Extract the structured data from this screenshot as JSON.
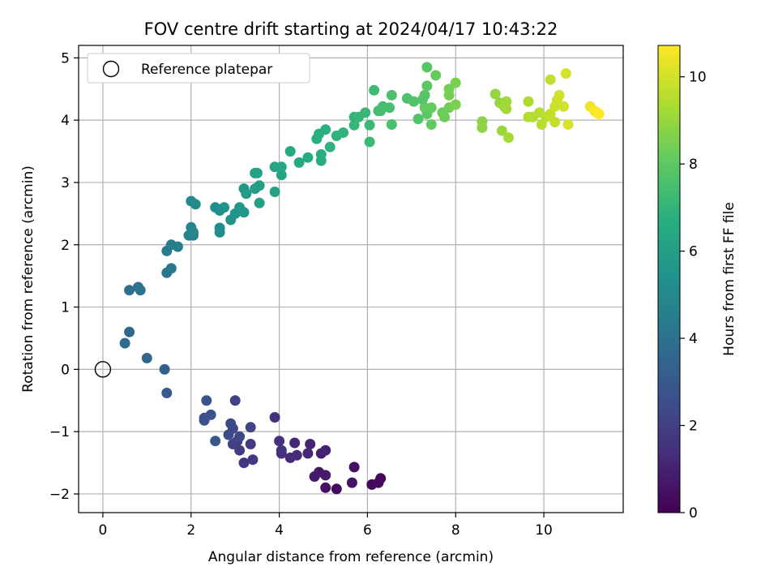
{
  "chart_data": {
    "type": "scatter",
    "title": "FOV centre drift starting at 2024/04/17 10:43:22",
    "xlabel": "Angular distance from reference (arcmin)",
    "ylabel": "Rotation from reference (arcmin)",
    "xlim": [
      -0.55,
      11.8
    ],
    "ylim": [
      -2.3,
      5.2
    ],
    "xticks": [
      0,
      2,
      4,
      6,
      8,
      10
    ],
    "yticks": [
      -2,
      -1,
      0,
      1,
      2,
      3,
      4,
      5
    ],
    "grid": true,
    "legend": {
      "placement": "top-left",
      "entries": [
        "Reference platepar"
      ]
    },
    "reference_point": {
      "x": 0,
      "y": 0
    },
    "colorbar": {
      "label": "Hours from first FF file",
      "colormap": "viridis",
      "min": 0,
      "max": 10.72,
      "ticks": [
        0,
        2,
        4,
        6,
        8,
        10
      ]
    },
    "points": [
      [
        6.3,
        -1.75,
        0.2
      ],
      [
        6.1,
        -1.85,
        0.25
      ],
      [
        6.25,
        -1.82,
        0.3
      ],
      [
        5.3,
        -1.92,
        0.35
      ],
      [
        5.05,
        -1.9,
        0.45
      ],
      [
        5.7,
        -1.57,
        0.5
      ],
      [
        5.65,
        -1.82,
        0.55
      ],
      [
        4.9,
        -1.65,
        0.7
      ],
      [
        4.8,
        -1.72,
        0.75
      ],
      [
        5.05,
        -1.7,
        0.8
      ],
      [
        4.95,
        -1.35,
        0.95
      ],
      [
        5.05,
        -1.3,
        1.0
      ],
      [
        4.7,
        -1.2,
        1.05
      ],
      [
        4.65,
        -1.35,
        1.1
      ],
      [
        4.35,
        -1.18,
        1.2
      ],
      [
        4.4,
        -1.38,
        1.25
      ],
      [
        4.25,
        -1.42,
        1.3
      ],
      [
        4.05,
        -1.35,
        1.35
      ],
      [
        4.0,
        -1.15,
        1.4
      ],
      [
        3.9,
        -0.77,
        1.5
      ],
      [
        4.05,
        -1.3,
        1.55
      ],
      [
        3.4,
        -1.45,
        1.65
      ],
      [
        3.2,
        -1.5,
        1.75
      ],
      [
        3.35,
        -1.2,
        1.8
      ],
      [
        3.1,
        -1.3,
        1.9
      ],
      [
        3.05,
        -1.15,
        1.95
      ],
      [
        2.95,
        -1.2,
        2.05
      ],
      [
        3.0,
        -0.5,
        2.1
      ],
      [
        3.35,
        -0.93,
        2.2
      ],
      [
        3.1,
        -1.08,
        2.25
      ],
      [
        2.95,
        -0.95,
        2.3
      ],
      [
        2.9,
        -0.87,
        2.4
      ],
      [
        2.85,
        -1.05,
        2.45
      ],
      [
        2.3,
        -0.78,
        2.6
      ],
      [
        2.3,
        -0.82,
        2.7
      ],
      [
        2.45,
        -0.73,
        2.75
      ],
      [
        2.35,
        -0.5,
        2.85
      ],
      [
        2.55,
        -1.15,
        2.95
      ],
      [
        1.45,
        -0.38,
        3.05
      ],
      [
        1.4,
        0.0,
        3.25
      ],
      [
        1.0,
        0.18,
        3.5
      ],
      [
        0.6,
        0.6,
        3.65
      ],
      [
        0.5,
        0.42,
        3.75
      ],
      [
        0.6,
        1.27,
        3.85
      ],
      [
        0.85,
        1.27,
        4.0
      ],
      [
        0.8,
        1.32,
        4.05
      ],
      [
        1.45,
        1.55,
        4.2
      ],
      [
        1.55,
        1.62,
        4.3
      ],
      [
        1.45,
        1.9,
        4.45
      ],
      [
        1.55,
        2.0,
        4.5
      ],
      [
        1.7,
        1.97,
        4.6
      ],
      [
        1.95,
        2.15,
        4.65
      ],
      [
        2.05,
        2.15,
        4.75
      ],
      [
        2.0,
        2.28,
        4.85
      ],
      [
        2.05,
        2.2,
        4.95
      ],
      [
        2.0,
        2.7,
        5.0
      ],
      [
        2.1,
        2.65,
        5.05
      ],
      [
        2.65,
        2.2,
        5.1
      ],
      [
        2.65,
        2.27,
        5.2
      ],
      [
        2.55,
        2.6,
        5.25
      ],
      [
        2.65,
        2.55,
        5.3
      ],
      [
        2.75,
        2.6,
        5.4
      ],
      [
        2.9,
        2.4,
        5.45
      ],
      [
        3.0,
        2.5,
        5.55
      ],
      [
        3.1,
        2.6,
        5.6
      ],
      [
        3.2,
        2.52,
        5.65
      ],
      [
        3.2,
        2.9,
        5.7
      ],
      [
        3.25,
        2.82,
        5.8
      ],
      [
        3.45,
        2.9,
        5.85
      ],
      [
        3.55,
        2.95,
        5.9
      ],
      [
        3.55,
        2.67,
        6.0
      ],
      [
        3.45,
        3.15,
        6.05
      ],
      [
        3.5,
        3.15,
        6.1
      ],
      [
        3.9,
        2.85,
        6.15
      ],
      [
        3.9,
        3.25,
        6.25
      ],
      [
        4.05,
        3.12,
        6.3
      ],
      [
        4.05,
        3.25,
        6.35
      ],
      [
        4.25,
        3.5,
        6.4
      ],
      [
        4.45,
        3.32,
        6.5
      ],
      [
        4.65,
        3.4,
        6.55
      ],
      [
        4.95,
        3.35,
        6.6
      ],
      [
        4.95,
        3.45,
        6.65
      ],
      [
        4.85,
        3.7,
        6.7
      ],
      [
        4.9,
        3.78,
        6.75
      ],
      [
        5.05,
        3.85,
        6.8
      ],
      [
        5.15,
        3.57,
        6.85
      ],
      [
        5.3,
        3.75,
        6.9
      ],
      [
        5.45,
        3.8,
        6.95
      ],
      [
        5.7,
        4.05,
        7.0
      ],
      [
        5.7,
        3.92,
        7.05
      ],
      [
        5.8,
        4.05,
        7.1
      ],
      [
        5.95,
        4.12,
        7.15
      ],
      [
        6.05,
        3.92,
        7.2
      ],
      [
        6.05,
        3.65,
        7.25
      ],
      [
        6.15,
        4.48,
        7.3
      ],
      [
        6.25,
        4.15,
        7.35
      ],
      [
        6.35,
        4.22,
        7.4
      ],
      [
        6.3,
        4.15,
        7.45
      ],
      [
        6.5,
        4.2,
        7.5
      ],
      [
        6.55,
        3.93,
        7.55
      ],
      [
        6.55,
        4.4,
        7.6
      ],
      [
        6.9,
        4.35,
        7.65
      ],
      [
        7.05,
        4.3,
        7.7
      ],
      [
        7.15,
        4.02,
        7.75
      ],
      [
        7.25,
        4.33,
        7.8
      ],
      [
        7.3,
        4.4,
        7.85
      ],
      [
        7.35,
        4.85,
        7.9
      ],
      [
        7.35,
        4.55,
        7.95
      ],
      [
        7.35,
        4.1,
        8.0
      ],
      [
        7.3,
        4.2,
        8.05
      ],
      [
        7.45,
        3.93,
        8.1
      ],
      [
        7.45,
        4.2,
        8.15
      ],
      [
        7.55,
        4.72,
        8.2
      ],
      [
        7.7,
        4.12,
        8.25
      ],
      [
        7.75,
        4.05,
        8.3
      ],
      [
        7.85,
        4.2,
        8.35
      ],
      [
        7.85,
        4.5,
        8.4
      ],
      [
        7.85,
        4.4,
        8.45
      ],
      [
        8.0,
        4.6,
        8.5
      ],
      [
        8.0,
        4.25,
        8.55
      ],
      [
        8.6,
        3.98,
        8.8
      ],
      [
        8.6,
        3.88,
        8.85
      ],
      [
        8.9,
        4.42,
        8.95
      ],
      [
        9.0,
        4.28,
        9.0
      ],
      [
        9.05,
        3.83,
        9.05
      ],
      [
        9.1,
        4.22,
        9.1
      ],
      [
        9.15,
        4.3,
        9.15
      ],
      [
        9.15,
        4.18,
        9.2
      ],
      [
        9.2,
        3.72,
        9.25
      ],
      [
        9.65,
        4.3,
        9.4
      ],
      [
        9.65,
        4.05,
        9.45
      ],
      [
        9.75,
        4.05,
        9.5
      ],
      [
        9.9,
        4.12,
        9.55
      ],
      [
        9.95,
        3.93,
        9.6
      ],
      [
        10.05,
        4.05,
        9.65
      ],
      [
        10.15,
        4.1,
        9.7
      ],
      [
        10.15,
        4.65,
        9.75
      ],
      [
        10.25,
        3.97,
        9.8
      ],
      [
        10.25,
        4.22,
        9.85
      ],
      [
        10.3,
        4.32,
        9.9
      ],
      [
        10.35,
        4.4,
        9.95
      ],
      [
        10.45,
        4.22,
        10.0
      ],
      [
        10.5,
        4.75,
        10.05
      ],
      [
        10.55,
        3.93,
        10.1
      ],
      [
        11.05,
        4.22,
        10.5
      ],
      [
        11.15,
        4.15,
        10.6
      ],
      [
        11.2,
        4.12,
        10.65
      ],
      [
        11.25,
        4.1,
        10.7
      ]
    ]
  }
}
